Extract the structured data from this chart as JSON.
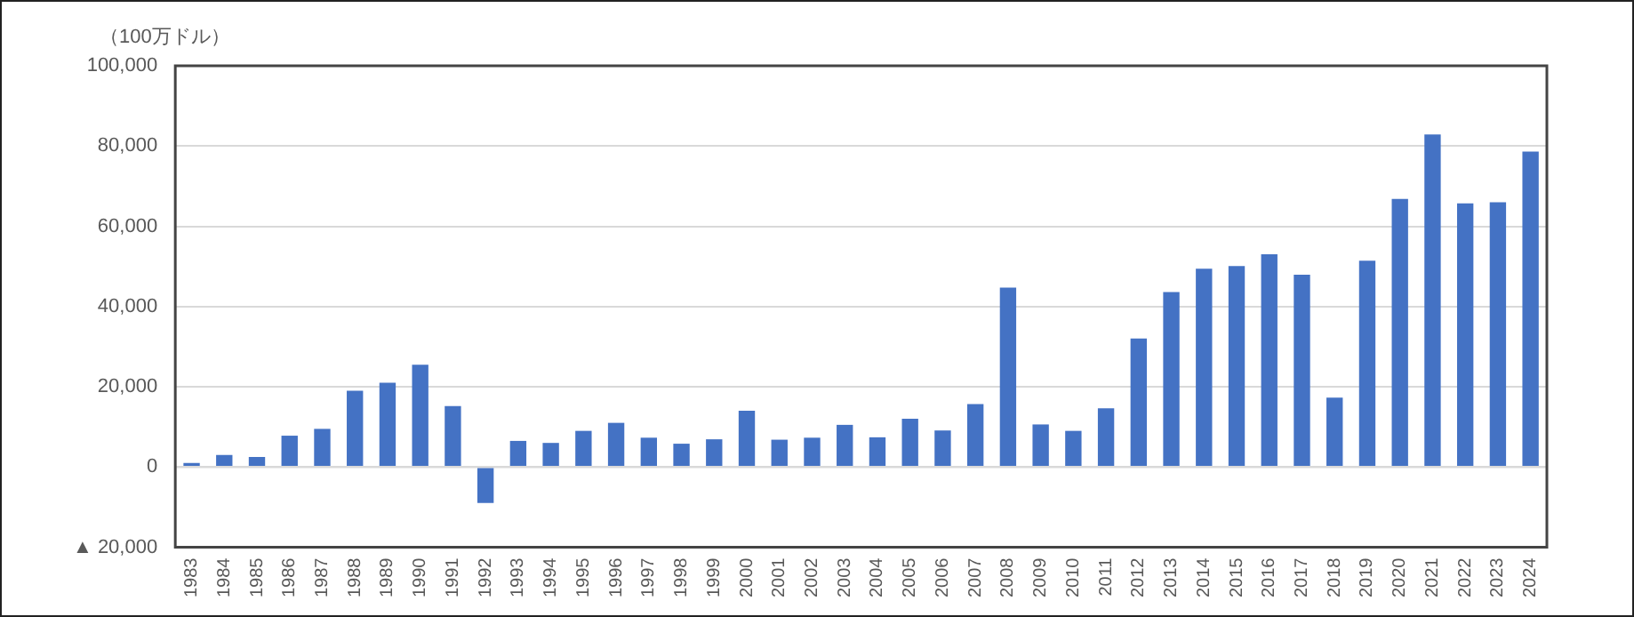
{
  "chart_data": {
    "type": "bar",
    "ylabel": "（100万ドル）",
    "categories": [
      "1983",
      "1984",
      "1985",
      "1986",
      "1987",
      "1988",
      "1989",
      "1990",
      "1991",
      "1992",
      "1993",
      "1994",
      "1995",
      "1996",
      "1997",
      "1998",
      "1999",
      "2000",
      "2001",
      "2002",
      "2003",
      "2004",
      "2005",
      "2006",
      "2007",
      "2008",
      "2009",
      "2010",
      "2011",
      "2012",
      "2013",
      "2014",
      "2015",
      "2016",
      "2017",
      "2018",
      "2019",
      "2020",
      "2021",
      "2022",
      "2023",
      "2024"
    ],
    "values": [
      1000,
      3000,
      2500,
      7800,
      9500,
      19000,
      21000,
      25500,
      15200,
      -9000,
      6500,
      6000,
      9000,
      11000,
      7300,
      5800,
      6900,
      14000,
      6800,
      7300,
      10500,
      7400,
      12000,
      9100,
      15700,
      44700,
      10600,
      9000,
      14600,
      32000,
      43600,
      49400,
      50100,
      53000,
      47900,
      17300,
      51400,
      66800,
      82900,
      65700,
      66000,
      78600
    ],
    "color": "#4472c4",
    "ylim": [
      -20000,
      100000
    ],
    "yticks": [
      {
        "value": -20000,
        "label": "▲ 20,000"
      },
      {
        "value": 0,
        "label": "0"
      },
      {
        "value": 20000,
        "label": "20,000"
      },
      {
        "value": 40000,
        "label": "40,000"
      },
      {
        "value": 60000,
        "label": "60,000"
      },
      {
        "value": 80000,
        "label": "80,000"
      },
      {
        "value": 100000,
        "label": "100,000"
      }
    ],
    "grid": "y",
    "legend": false
  }
}
